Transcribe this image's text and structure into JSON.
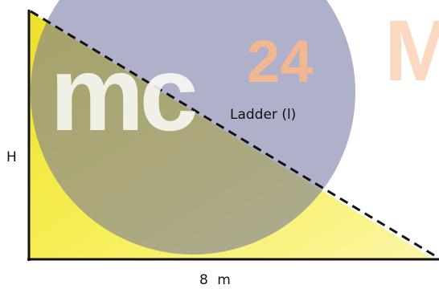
{
  "labels": {
    "height": "H",
    "ladder": "Ladder (l)",
    "base": "8 m"
  },
  "watermark": {
    "text_mc": "mc",
    "text_num": "24",
    "text_letter": "M"
  },
  "colors": {
    "triangle_fill": "#f6ec3a",
    "circle": "#6e6f9c",
    "watermark_text": "#fbfbf6",
    "watermark_number": "#f2b690",
    "watermark_letter": "#fbd8c0"
  }
}
